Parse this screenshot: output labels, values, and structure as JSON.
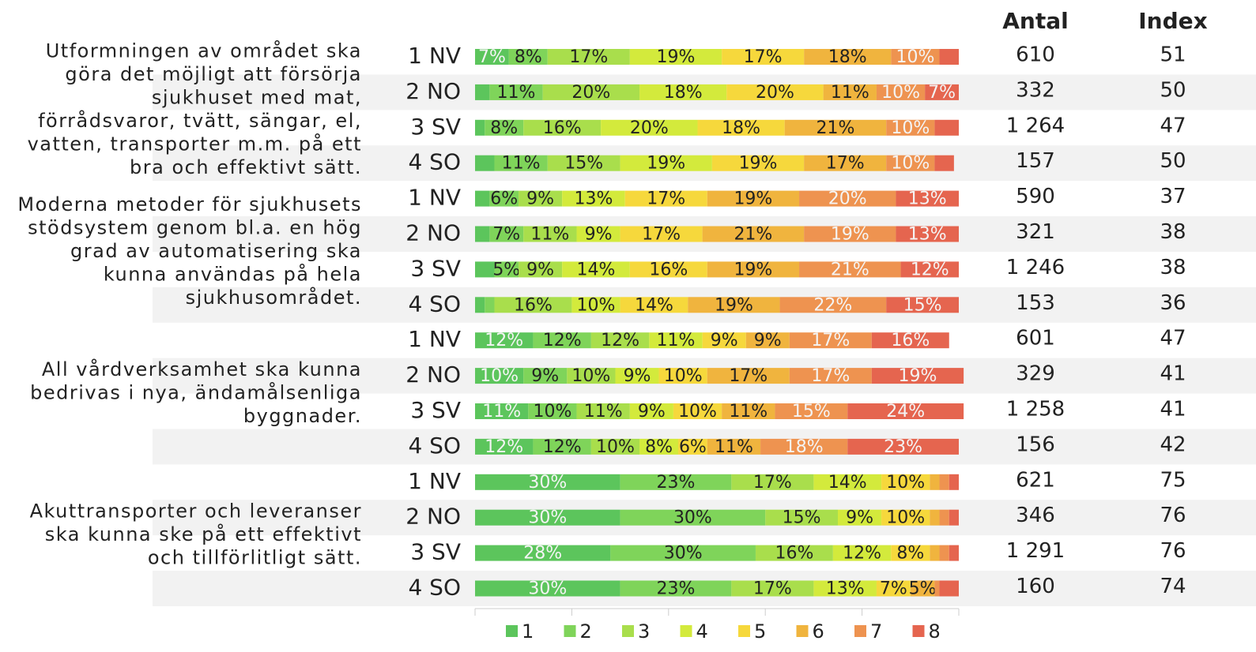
{
  "chart_data": {
    "type": "stacked_barh",
    "questions": [
      {
        "lines": [
          "Utformningen av området ska",
          "göra det möjligt att försörja",
          "sjukhuset med mat,",
          "förrådsvaror, tvätt, sängar, el,",
          "vatten, transporter m.m. på ett",
          "bra och effektivt sätt."
        ]
      },
      {
        "lines": [
          "Moderna metoder för sjukhusets",
          "stödsystem genom bl.a. en hög",
          "grad av automatisering ska",
          "kunna användas på hela",
          "sjukhusområdet."
        ]
      },
      {
        "lines": [
          "All vårdverksamhet ska kunna",
          "bedrivas i nya, ändamålsenliga",
          "byggnader."
        ]
      },
      {
        "lines": [
          "Akuttransporter och leveranser",
          "ska kunna ske på ett effektivt",
          "och tillförlitligt sätt."
        ]
      }
    ],
    "categories": [
      "1 NV",
      "2 NO",
      "3 SV",
      "4 SO",
      "1 NV",
      "2 NO",
      "3 SV",
      "4 SO",
      "1 NV",
      "2 NO",
      "3 SV",
      "4 SO",
      "1 NV",
      "2 NO",
      "3 SV",
      "4 SO"
    ],
    "series": [
      {
        "name": "1",
        "color": "#5cc55c",
        "values": [
          7,
          3,
          2,
          4,
          3,
          3,
          4,
          2,
          12,
          10,
          11,
          12,
          30,
          30,
          28,
          30
        ],
        "value_labels": [
          "7%",
          null,
          null,
          null,
          null,
          null,
          null,
          null,
          "12%",
          "10%",
          "11%",
          "12%",
          "30%",
          "30%",
          "28%",
          "30%"
        ]
      },
      {
        "name": "2",
        "color": "#7fd45a",
        "values": [
          8,
          11,
          8,
          11,
          6,
          7,
          5,
          2,
          12,
          9,
          10,
          12,
          23,
          30,
          30,
          23
        ],
        "value_labels": [
          "8%",
          "11%",
          "8%",
          "11%",
          "6%",
          "7%",
          "5%",
          null,
          "12%",
          "9%",
          "10%",
          "12%",
          "23%",
          "30%",
          "30%",
          "23%"
        ]
      },
      {
        "name": "3",
        "color": "#a9de4c",
        "values": [
          17,
          20,
          16,
          15,
          9,
          11,
          9,
          16,
          12,
          10,
          11,
          10,
          17,
          15,
          16,
          17
        ],
        "value_labels": [
          "17%",
          "20%",
          "16%",
          "15%",
          "9%",
          "11%",
          "9%",
          "16%",
          "12%",
          "10%",
          "11%",
          "10%",
          "17%",
          "15%",
          "16%",
          "17%"
        ]
      },
      {
        "name": "4",
        "color": "#d3ea3c",
        "values": [
          19,
          18,
          20,
          19,
          13,
          9,
          14,
          10,
          11,
          9,
          9,
          8,
          14,
          9,
          12,
          13
        ],
        "value_labels": [
          "19%",
          "18%",
          "20%",
          "19%",
          "13%",
          "9%",
          "14%",
          "10%",
          "11%",
          "9%",
          "9%",
          "8%",
          "14%",
          "9%",
          "12%",
          "13%"
        ]
      },
      {
        "name": "5",
        "color": "#f6d83c",
        "values": [
          17,
          20,
          18,
          19,
          17,
          17,
          16,
          14,
          9,
          10,
          10,
          6,
          10,
          10,
          8,
          7
        ],
        "value_labels": [
          "17%",
          "20%",
          "18%",
          "19%",
          "17%",
          "17%",
          "16%",
          "14%",
          "9%",
          "10%",
          "10%",
          "6%",
          "10%",
          "10%",
          "8%",
          "7%"
        ]
      },
      {
        "name": "6",
        "color": "#f0b43e",
        "values": [
          18,
          11,
          21,
          17,
          19,
          21,
          19,
          19,
          9,
          17,
          11,
          11,
          2,
          2,
          2,
          5
        ],
        "value_labels": [
          "18%",
          "11%",
          "21%",
          "17%",
          "19%",
          "21%",
          "19%",
          "19%",
          "9%",
          "17%",
          "11%",
          "11%",
          null,
          null,
          null,
          "5%"
        ]
      },
      {
        "name": "7",
        "color": "#ee9350",
        "values": [
          10,
          10,
          10,
          10,
          20,
          19,
          21,
          22,
          17,
          17,
          15,
          18,
          2,
          2,
          2,
          1
        ],
        "value_labels": [
          "10%",
          "10%",
          "10%",
          "10%",
          "20%",
          "19%",
          "21%",
          "22%",
          "17%",
          "17%",
          "15%",
          "18%",
          null,
          null,
          null,
          null
        ]
      },
      {
        "name": "8",
        "color": "#e5654f",
        "values": [
          4,
          7,
          5,
          4,
          13,
          13,
          12,
          15,
          16,
          19,
          24,
          23,
          2,
          2,
          2,
          4
        ],
        "value_labels": [
          null,
          "7%",
          null,
          null,
          "13%",
          "13%",
          "12%",
          "15%",
          "16%",
          "19%",
          "24%",
          "23%",
          null,
          null,
          null,
          null
        ]
      }
    ],
    "xlim": [
      0,
      100
    ],
    "xticks": [
      0,
      20,
      40,
      60,
      80,
      100
    ],
    "columns": [
      {
        "name": "Antal",
        "values": [
          610,
          332,
          {
            "value": 1264,
            "label": "1 264"
          },
          157,
          590,
          321,
          {
            "value": 1246,
            "label": "1 246"
          },
          153,
          601,
          329,
          {
            "value": 1258,
            "label": "1 258"
          },
          156,
          621,
          346,
          {
            "value": 1291,
            "label": "1 291"
          },
          160
        ]
      },
      {
        "name": "Index",
        "values": [
          51,
          50,
          47,
          50,
          37,
          38,
          38,
          36,
          47,
          41,
          41,
          42,
          75,
          76,
          76,
          74
        ]
      }
    ]
  }
}
